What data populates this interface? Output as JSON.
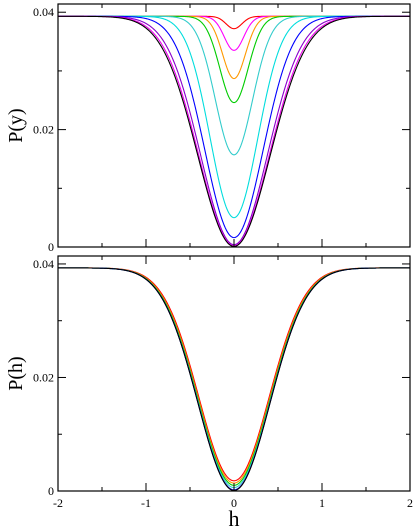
{
  "chart_data": [
    {
      "type": "line",
      "ylabel": "P(y)",
      "xlabel": "",
      "xlim": [
        -2,
        2
      ],
      "ylim": [
        0,
        0.0414
      ],
      "yticks": [
        0,
        0.02,
        0.04
      ],
      "ytick_labels": [
        "0",
        "0.02",
        "0.04"
      ],
      "show_x_tick_labels": false,
      "plateau": 0.0393,
      "series": [
        {
          "color": "#ff0000",
          "min_value": 0.0372,
          "width": 0.09
        },
        {
          "color": "#ff00ff",
          "min_value": 0.0335,
          "width": 0.11
        },
        {
          "color": "#ff9900",
          "min_value": 0.0287,
          "width": 0.13
        },
        {
          "color": "#00cc00",
          "min_value": 0.0246,
          "width": 0.16
        },
        {
          "color": "#33cccc",
          "min_value": 0.0157,
          "width": 0.21
        },
        {
          "color": "#00dddd",
          "min_value": 0.005,
          "width": 0.27
        },
        {
          "color": "#0000ff",
          "min_value": 0.0016,
          "width": 0.33
        },
        {
          "color": "#8800cc",
          "min_value": 0.0004,
          "width": 0.38
        },
        {
          "color": "#ee00ee",
          "min_value": 0.0002,
          "width": 0.4
        },
        {
          "color": "#000000",
          "min_value": 0.0001,
          "width": 0.41
        }
      ]
    },
    {
      "type": "line",
      "ylabel": "P(h)",
      "xlabel": "h",
      "xlim": [
        -2,
        2
      ],
      "ylim": [
        0,
        0.0414
      ],
      "yticks": [
        0,
        0.02,
        0.04
      ],
      "ytick_labels": [
        "0",
        "0.02",
        "0.04"
      ],
      "xticks": [
        -2,
        -1,
        0,
        1,
        2
      ],
      "xtick_labels": [
        "-2",
        "-1",
        "0",
        "1",
        "2"
      ],
      "show_x_tick_labels": true,
      "plateau": 0.0393,
      "series": [
        {
          "color": "#ff0000",
          "min_value": 0.0018,
          "width": 0.4
        },
        {
          "color": "#ff9900",
          "min_value": 0.0014,
          "width": 0.405
        },
        {
          "color": "#00cc00",
          "min_value": 0.001,
          "width": 0.408
        },
        {
          "color": "#33cccc",
          "min_value": 0.0006,
          "width": 0.41
        },
        {
          "color": "#0000ff",
          "min_value": 0.0002,
          "width": 0.41
        },
        {
          "color": "#000000",
          "min_value": 0.0001,
          "width": 0.41
        }
      ]
    }
  ]
}
